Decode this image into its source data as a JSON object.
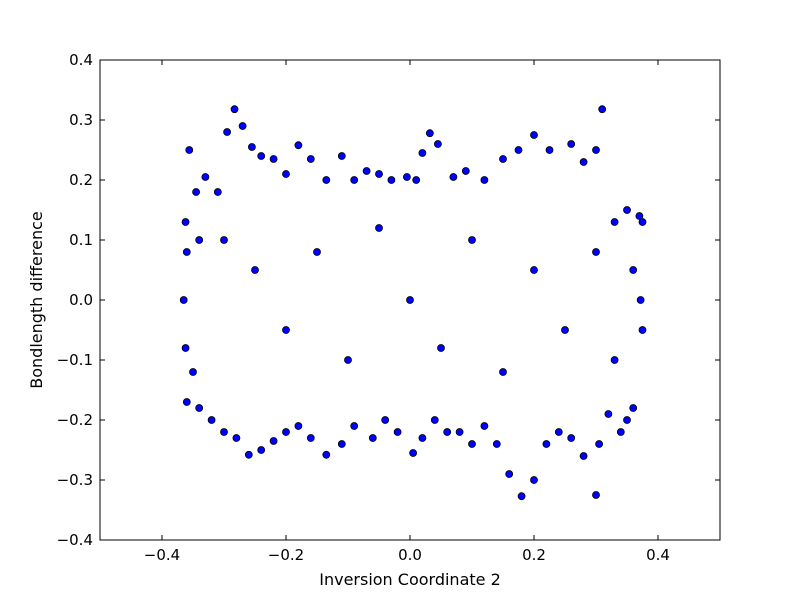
{
  "chart_data": {
    "type": "scatter",
    "title": "",
    "xlabel": "Inversion Coordinate 2",
    "ylabel": "Bondlength difference",
    "xlim": [
      -0.5,
      0.5
    ],
    "ylim": [
      -0.4,
      0.4
    ],
    "x_ticks": [
      -0.4,
      -0.2,
      0.0,
      0.2,
      0.4
    ],
    "x_tick_labels": [
      "−0.4",
      "−0.2",
      "0.0",
      "0.2",
      "0.4"
    ],
    "y_ticks": [
      -0.4,
      -0.3,
      -0.2,
      -0.1,
      0.0,
      0.1,
      0.2,
      0.3,
      0.4
    ],
    "y_tick_labels": [
      "−0.4",
      "−0.3",
      "−0.2",
      "−0.1",
      "0.0",
      "0.1",
      "0.2",
      "0.3",
      "0.4"
    ],
    "grid": false,
    "legend": "none",
    "marker_color": "#0000ff",
    "marker_edge_color": "#000000",
    "series": [
      {
        "points": [
          [
            -0.362,
            0.13
          ],
          [
            -0.356,
            0.25
          ],
          [
            -0.345,
            0.18
          ],
          [
            -0.33,
            0.205
          ],
          [
            -0.31,
            0.18
          ],
          [
            -0.295,
            0.28
          ],
          [
            -0.283,
            0.318
          ],
          [
            -0.27,
            0.29
          ],
          [
            -0.255,
            0.255
          ],
          [
            -0.24,
            0.24
          ],
          [
            -0.22,
            0.235
          ],
          [
            -0.2,
            0.21
          ],
          [
            -0.18,
            0.258
          ],
          [
            -0.16,
            0.235
          ],
          [
            -0.135,
            0.2
          ],
          [
            -0.11,
            0.24
          ],
          [
            -0.09,
            0.2
          ],
          [
            -0.07,
            0.215
          ],
          [
            -0.05,
            0.21
          ],
          [
            -0.03,
            0.2
          ],
          [
            -0.005,
            0.205
          ],
          [
            0.01,
            0.2
          ],
          [
            0.02,
            0.245
          ],
          [
            0.032,
            0.278
          ],
          [
            0.045,
            0.26
          ],
          [
            0.07,
            0.205
          ],
          [
            0.09,
            0.215
          ],
          [
            0.12,
            0.2
          ],
          [
            0.15,
            0.235
          ],
          [
            0.175,
            0.25
          ],
          [
            0.2,
            0.275
          ],
          [
            0.225,
            0.25
          ],
          [
            0.26,
            0.26
          ],
          [
            0.28,
            0.23
          ],
          [
            0.3,
            0.25
          ],
          [
            0.31,
            0.318
          ],
          [
            0.33,
            0.13
          ],
          [
            0.35,
            0.15
          ],
          [
            0.37,
            0.14
          ],
          [
            0.375,
            0.13
          ],
          [
            0.375,
            -0.05
          ],
          [
            0.372,
            0.0
          ],
          [
            0.36,
            -0.18
          ],
          [
            0.35,
            -0.2
          ],
          [
            0.34,
            -0.22
          ],
          [
            0.32,
            -0.19
          ],
          [
            0.305,
            -0.24
          ],
          [
            0.3,
            -0.325
          ],
          [
            0.28,
            -0.26
          ],
          [
            0.26,
            -0.23
          ],
          [
            0.24,
            -0.22
          ],
          [
            0.22,
            -0.24
          ],
          [
            0.2,
            -0.3
          ],
          [
            0.18,
            -0.327
          ],
          [
            0.16,
            -0.29
          ],
          [
            0.14,
            -0.24
          ],
          [
            0.12,
            -0.21
          ],
          [
            0.1,
            -0.24
          ],
          [
            0.08,
            -0.22
          ],
          [
            0.06,
            -0.22
          ],
          [
            0.04,
            -0.2
          ],
          [
            0.02,
            -0.23
          ],
          [
            0.005,
            -0.255
          ],
          [
            -0.02,
            -0.22
          ],
          [
            -0.04,
            -0.2
          ],
          [
            -0.06,
            -0.23
          ],
          [
            -0.09,
            -0.21
          ],
          [
            -0.11,
            -0.24
          ],
          [
            -0.135,
            -0.258
          ],
          [
            -0.16,
            -0.23
          ],
          [
            -0.18,
            -0.21
          ],
          [
            -0.2,
            -0.22
          ],
          [
            -0.22,
            -0.235
          ],
          [
            -0.24,
            -0.25
          ],
          [
            -0.26,
            -0.258
          ],
          [
            -0.28,
            -0.23
          ],
          [
            -0.3,
            -0.22
          ],
          [
            -0.32,
            -0.2
          ],
          [
            -0.34,
            -0.18
          ],
          [
            -0.36,
            -0.17
          ],
          [
            -0.365,
            0.0
          ],
          [
            -0.362,
            -0.08
          ],
          [
            -0.36,
            0.08
          ],
          [
            -0.35,
            -0.12
          ],
          [
            -0.34,
            0.1
          ],
          [
            -0.3,
            0.1
          ],
          [
            -0.25,
            0.05
          ],
          [
            -0.2,
            -0.05
          ],
          [
            -0.15,
            0.08
          ],
          [
            -0.1,
            -0.1
          ],
          [
            -0.05,
            0.12
          ],
          [
            0.0,
            0.0
          ],
          [
            0.05,
            -0.08
          ],
          [
            0.1,
            0.1
          ],
          [
            0.15,
            -0.12
          ],
          [
            0.2,
            0.05
          ],
          [
            0.25,
            -0.05
          ],
          [
            0.3,
            0.08
          ],
          [
            0.33,
            -0.1
          ],
          [
            0.36,
            0.05
          ]
        ]
      }
    ]
  }
}
